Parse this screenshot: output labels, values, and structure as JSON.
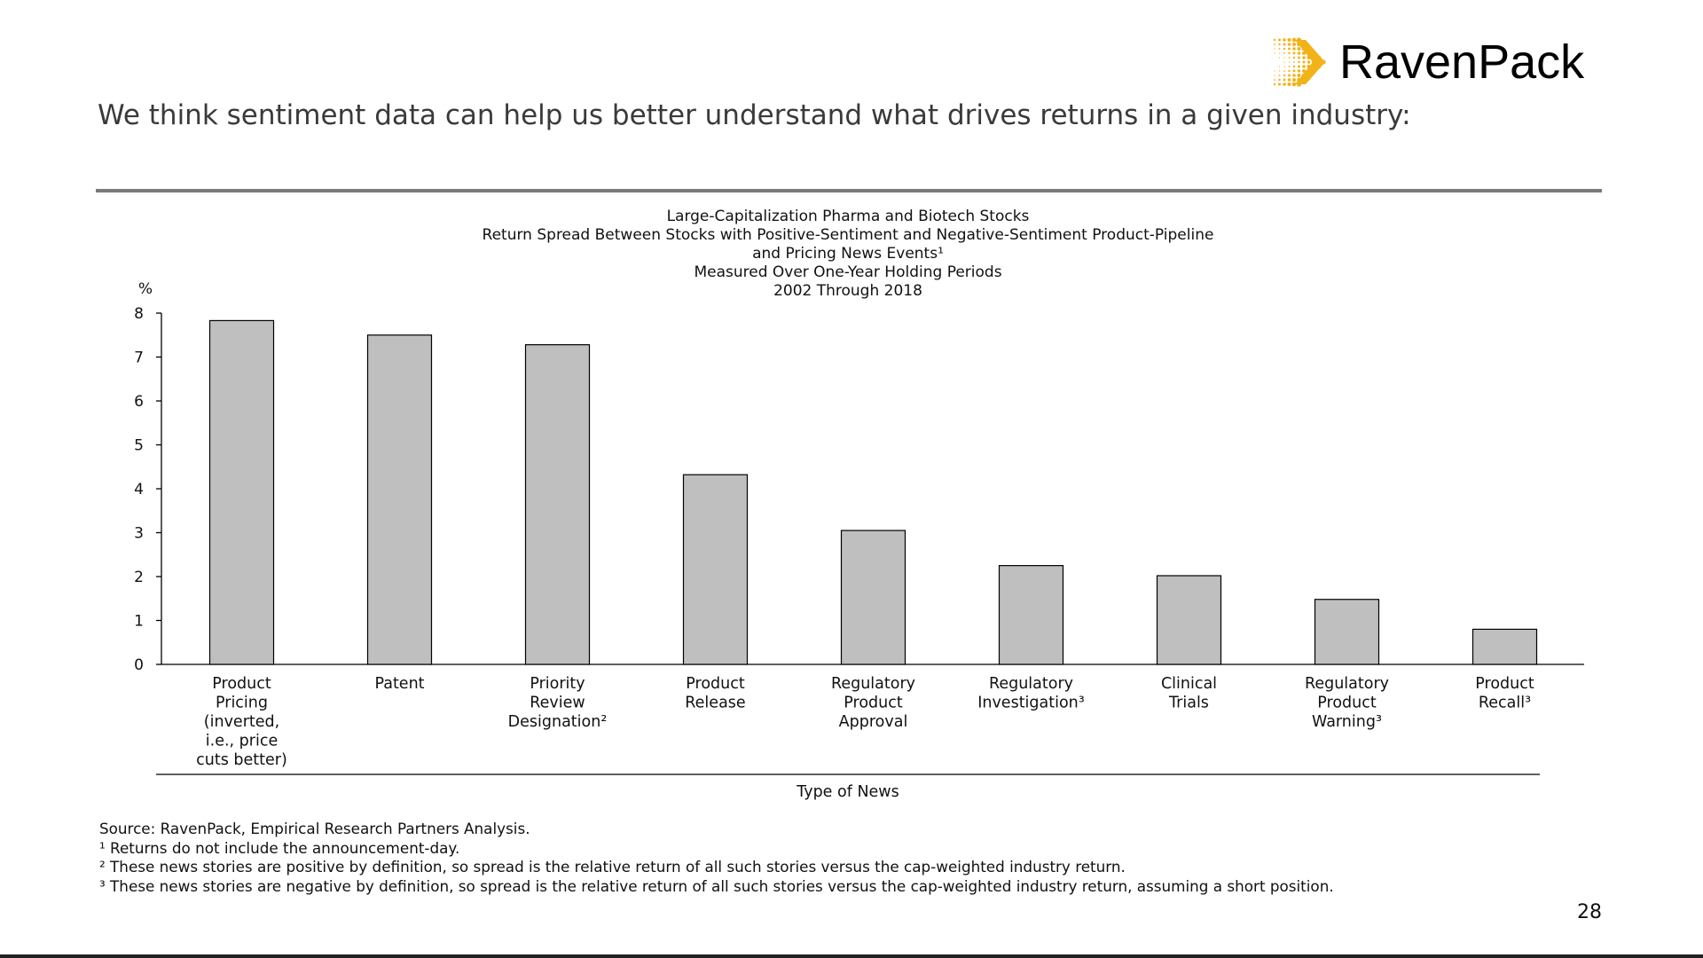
{
  "brand": {
    "name": "RavenPack",
    "logo_color": "#F2B318"
  },
  "headline": "We think sentiment data can help us better understand what drives returns in a given industry:",
  "chart_data": {
    "type": "bar",
    "title_lines": [
      "Large-Capitalization Pharma and Biotech Stocks",
      "Return Spread Between Stocks with Positive-Sentiment and Negative-Sentiment Product-Pipeline",
      "and Pricing News Events¹",
      "Measured Over One-Year Holding Periods",
      "2002 Through 2018"
    ],
    "ylabel": "%",
    "xlabel": "Type of News",
    "ylim": [
      0,
      8
    ],
    "yticks": [
      0,
      1,
      2,
      3,
      4,
      5,
      6,
      7,
      8
    ],
    "categories": [
      [
        "Product",
        "Pricing",
        "(inverted,",
        "i.e., price",
        "cuts better)"
      ],
      [
        "Patent"
      ],
      [
        "Priority",
        "Review",
        "Designation²"
      ],
      [
        "Product",
        "Release"
      ],
      [
        "Regulatory",
        "Product",
        "Approval"
      ],
      [
        "Regulatory",
        "Investigation³"
      ],
      [
        "Clinical",
        "Trials"
      ],
      [
        "Regulatory",
        "Product",
        "Warning³"
      ],
      [
        "Product",
        "Recall³"
      ]
    ],
    "values": [
      7.83,
      7.5,
      7.28,
      4.32,
      3.05,
      2.25,
      2.02,
      1.48,
      0.8
    ],
    "bar_color": "#BFBFBF",
    "bar_edge_color": "#000000",
    "grid": false
  },
  "notes": [
    "Source: RavenPack, Empirical Research Partners Analysis.",
    "¹ Returns do not include the announcement-day.",
    "² These news stories are positive by definition, so spread is the relative return of all such stories versus the cap-weighted industry return.",
    "³ These news stories are negative by definition, so spread is the relative return of all such stories versus the cap-weighted industry return, assuming a short position."
  ],
  "page_number": "28"
}
